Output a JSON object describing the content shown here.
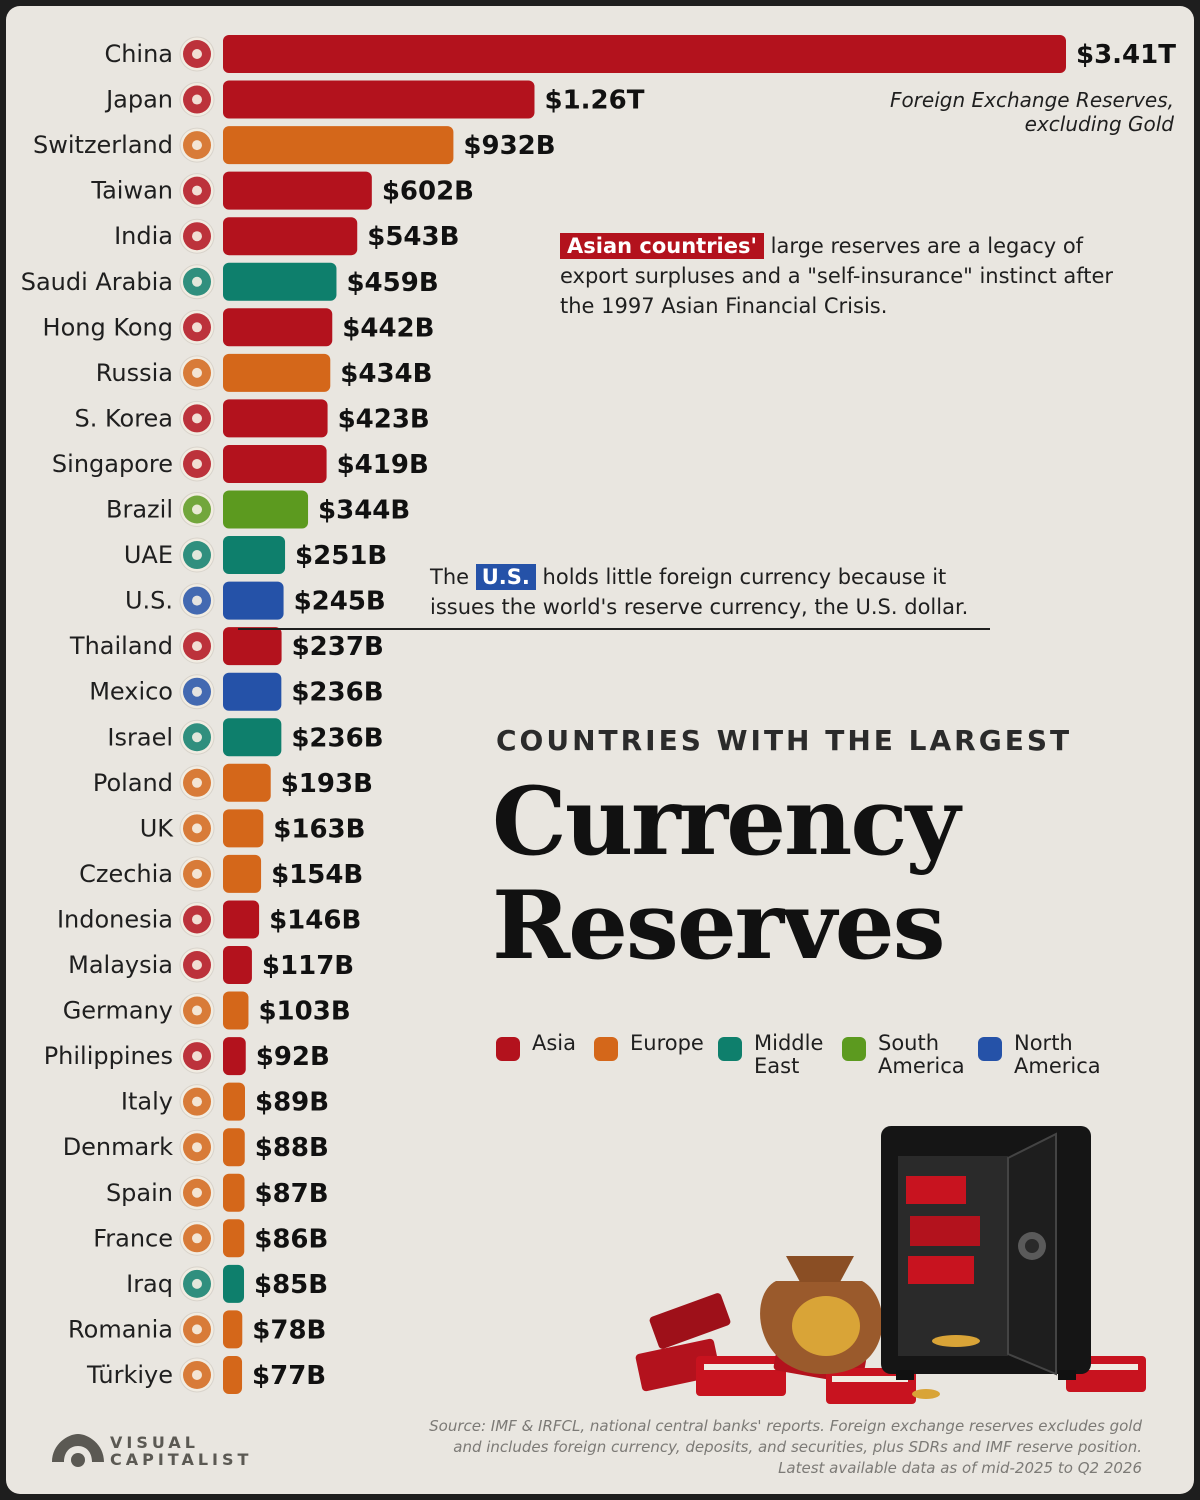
{
  "subtitle": [
    "Foreign Exchange Reserves,",
    "excluding Gold"
  ],
  "notes": {
    "asia_highlight": "Asian countries'",
    "asia_text": " large reserves are a legacy of export surpluses and a \"self-insurance\" instinct after the 1997 Asian Financial Crisis.",
    "us_prefix": "The ",
    "us_highlight": "U.S.",
    "us_text": " holds little foreign currency because it issues the world's reserve currency, the U.S. dollar."
  },
  "title": {
    "kicker": "COUNTRIES WITH THE LARGEST",
    "line1": "Currency",
    "line2": "Reserves"
  },
  "legend": [
    {
      "label": "Asia",
      "color": "#b3121d"
    },
    {
      "label": "Europe",
      "color": "#d4671a"
    },
    {
      "label": "Middle East",
      "color": "#0e7f6c"
    },
    {
      "label": "South America",
      "color": "#5c9a1f"
    },
    {
      "label": "North America",
      "color": "#2552a8"
    }
  ],
  "source": [
    "Source: IMF & IRFCL, national central banks' reports. Foreign exchange reserves excludes gold",
    "and includes foreign currency, deposits, and securities, plus SDRs and IMF reserve position.",
    "Latest available data as of mid-2025 to Q2 2026"
  ],
  "logo": [
    "VISUAL",
    "CAPITALIST"
  ],
  "chart_data": {
    "type": "bar",
    "orientation": "horizontal",
    "unit": "USD billions",
    "categories": [
      "China",
      "Japan",
      "Switzerland",
      "Taiwan",
      "India",
      "Saudi Arabia",
      "Hong Kong",
      "Russia",
      "S. Korea",
      "Singapore",
      "Brazil",
      "UAE",
      "U.S.",
      "Thailand",
      "Mexico",
      "Israel",
      "Poland",
      "UK",
      "Czechia",
      "Indonesia",
      "Malaysia",
      "Germany",
      "Philippines",
      "Italy",
      "Denmark",
      "Spain",
      "France",
      "Iraq",
      "Romania",
      "Türkiye"
    ],
    "values": [
      3410,
      1260,
      932,
      602,
      543,
      459,
      442,
      434,
      423,
      419,
      344,
      251,
      245,
      237,
      236,
      236,
      193,
      163,
      154,
      146,
      117,
      103,
      92,
      89,
      88,
      87,
      86,
      85,
      78,
      77
    ],
    "labels": [
      "$3.41T",
      "$1.26T",
      "$932B",
      "$602B",
      "$543B",
      "$459B",
      "$442B",
      "$434B",
      "$423B",
      "$419B",
      "$344B",
      "$251B",
      "$245B",
      "$237B",
      "$236B",
      "$236B",
      "$193B",
      "$163B",
      "$154B",
      "$146B",
      "$117B",
      "$103B",
      "$92B",
      "$89B",
      "$88B",
      "$87B",
      "$86B",
      "$85B",
      "$78B",
      "$77B"
    ],
    "regions": [
      "Asia",
      "Asia",
      "Europe",
      "Asia",
      "Asia",
      "Middle East",
      "Asia",
      "Europe",
      "Asia",
      "Asia",
      "South America",
      "Middle East",
      "North America",
      "Asia",
      "North America",
      "Middle East",
      "Europe",
      "Europe",
      "Europe",
      "Asia",
      "Asia",
      "Europe",
      "Asia",
      "Europe",
      "Europe",
      "Europe",
      "Europe",
      "Middle East",
      "Europe",
      "Europe"
    ],
    "flags": [
      "flag-china",
      "flag-japan",
      "flag-switzerland",
      "flag-taiwan",
      "flag-india",
      "flag-saudi-arabia",
      "flag-hong-kong",
      "flag-russia",
      "flag-south-korea",
      "flag-singapore",
      "flag-brazil",
      "flag-uae",
      "flag-us",
      "flag-thailand",
      "flag-mexico",
      "flag-israel",
      "flag-poland",
      "flag-uk",
      "flag-czechia",
      "flag-indonesia",
      "flag-malaysia",
      "flag-germany",
      "flag-philippines",
      "flag-italy",
      "flag-denmark",
      "flag-spain",
      "flag-france",
      "flag-iraq",
      "flag-romania",
      "flag-turkiye"
    ],
    "grid": false,
    "legend_position": "below title"
  }
}
